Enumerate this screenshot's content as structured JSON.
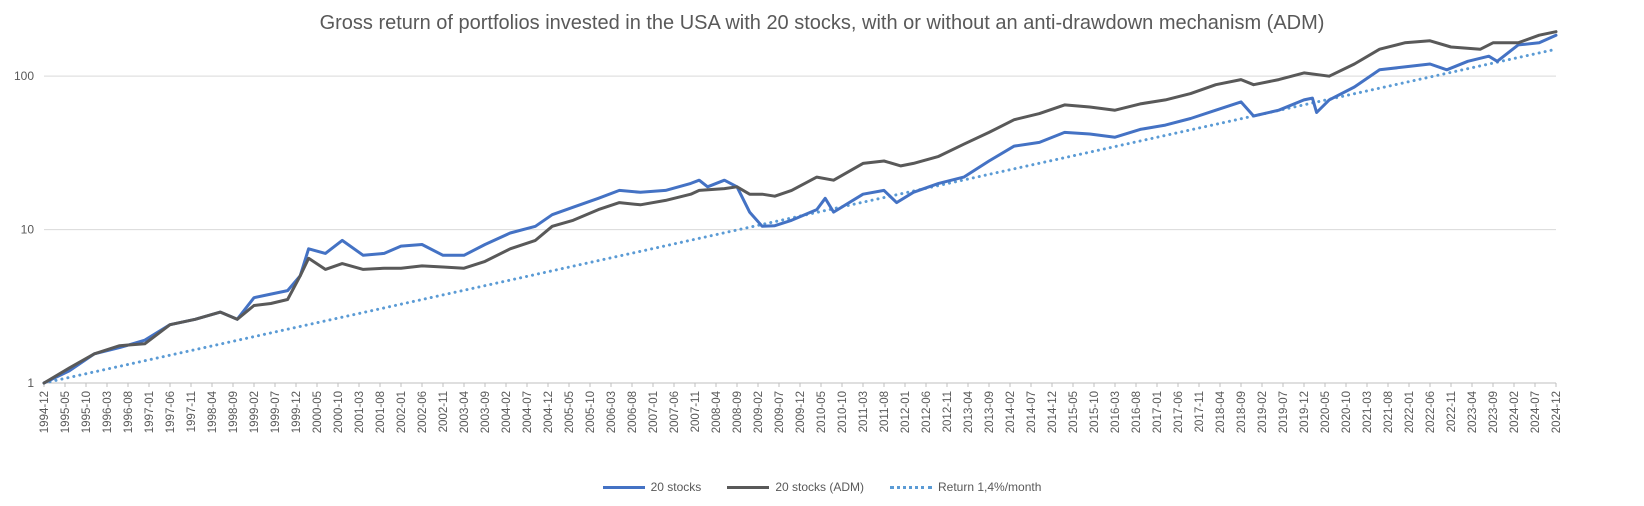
{
  "chart_data": {
    "type": "line",
    "title": "Gross return of portfolios invested in the USA with 20 stocks, with or without an anti-drawdown mechanism (ADM)",
    "y_scale": "log",
    "ylim": [
      1,
      200
    ],
    "y_ticks": [
      {
        "value": 1,
        "label": "1"
      },
      {
        "value": 10,
        "label": "10"
      },
      {
        "value": 100,
        "label": "100"
      }
    ],
    "grid": true,
    "legend_placement": "bottom",
    "x_tick_labels": [
      "1994-12",
      "1995-05",
      "1995-10",
      "1996-03",
      "1996-08",
      "1997-01",
      "1997-06",
      "1997-11",
      "1998-04",
      "1998-09",
      "1999-02",
      "1999-07",
      "1999-12",
      "2000-05",
      "2000-10",
      "2001-03",
      "2001-08",
      "2002-01",
      "2002-06",
      "2002-11",
      "2003-04",
      "2003-09",
      "2004-02",
      "2004-07",
      "2004-12",
      "2005-05",
      "2005-10",
      "2006-03",
      "2006-08",
      "2007-01",
      "2007-06",
      "2007-11",
      "2008-04",
      "2008-09",
      "2009-02",
      "2009-07",
      "2009-12",
      "2010-05",
      "2010-10",
      "2011-03",
      "2011-08",
      "2012-01",
      "2012-06",
      "2012-11",
      "2013-04",
      "2013-09",
      "2014-02",
      "2014-07",
      "2014-12",
      "2015-05",
      "2015-10",
      "2016-03",
      "2016-08",
      "2017-01",
      "2017-06",
      "2017-11",
      "2018-04",
      "2018-09",
      "2019-02",
      "2019-07",
      "2019-12",
      "2020-05",
      "2020-10",
      "2021-03",
      "2021-08",
      "2022-01",
      "2022-06",
      "2022-11",
      "2023-04",
      "2023-09",
      "2024-02",
      "2024-07",
      "2024-12"
    ],
    "series": [
      {
        "name": "20 stocks",
        "color": "#4472C4",
        "style": "solid",
        "points": [
          [
            "1994-12",
            1
          ],
          [
            "1995-06",
            1.2
          ],
          [
            "1995-12",
            1.55
          ],
          [
            "1996-06",
            1.7
          ],
          [
            "1996-12",
            1.9
          ],
          [
            "1997-06",
            2.4
          ],
          [
            "1997-12",
            2.6
          ],
          [
            "1998-06",
            2.9
          ],
          [
            "1998-10",
            2.6
          ],
          [
            "1999-02",
            3.6
          ],
          [
            "1999-06",
            3.8
          ],
          [
            "1999-10",
            4.0
          ],
          [
            "2000-01",
            5.0
          ],
          [
            "2000-03",
            7.5
          ],
          [
            "2000-07",
            7.0
          ],
          [
            "2000-11",
            8.5
          ],
          [
            "2001-04",
            6.8
          ],
          [
            "2001-09",
            7.0
          ],
          [
            "2002-01",
            7.8
          ],
          [
            "2002-06",
            8.0
          ],
          [
            "2002-11",
            6.8
          ],
          [
            "2003-04",
            6.8
          ],
          [
            "2003-09",
            8.0
          ],
          [
            "2004-03",
            9.5
          ],
          [
            "2004-09",
            10.5
          ],
          [
            "2005-01",
            12.5
          ],
          [
            "2005-06",
            14
          ],
          [
            "2005-12",
            16
          ],
          [
            "2006-05",
            18
          ],
          [
            "2006-10",
            17.5
          ],
          [
            "2007-04",
            18
          ],
          [
            "2007-10",
            20
          ],
          [
            "2007-12",
            21
          ],
          [
            "2008-02",
            19
          ],
          [
            "2008-06",
            21
          ],
          [
            "2008-09",
            19
          ],
          [
            "2008-12",
            13
          ],
          [
            "2009-03",
            10.5
          ],
          [
            "2009-06",
            10.6
          ],
          [
            "2009-10",
            11.5
          ],
          [
            "2010-04",
            13.5
          ],
          [
            "2010-06",
            16
          ],
          [
            "2010-08",
            13
          ],
          [
            "2011-03",
            17
          ],
          [
            "2011-08",
            18
          ],
          [
            "2011-11",
            15
          ],
          [
            "2012-03",
            17.5
          ],
          [
            "2012-09",
            20
          ],
          [
            "2013-03",
            22
          ],
          [
            "2013-09",
            28
          ],
          [
            "2014-03",
            35
          ],
          [
            "2014-09",
            37
          ],
          [
            "2015-03",
            43
          ],
          [
            "2015-09",
            42
          ],
          [
            "2016-03",
            40
          ],
          [
            "2016-09",
            45
          ],
          [
            "2017-03",
            48
          ],
          [
            "2017-09",
            53
          ],
          [
            "2018-03",
            60
          ],
          [
            "2018-09",
            68
          ],
          [
            "2018-12",
            55
          ],
          [
            "2019-06",
            60
          ],
          [
            "2019-12",
            70
          ],
          [
            "2020-02",
            72
          ],
          [
            "2020-03",
            58
          ],
          [
            "2020-06",
            70
          ],
          [
            "2020-12",
            85
          ],
          [
            "2021-06",
            110
          ],
          [
            "2021-12",
            115
          ],
          [
            "2022-06",
            120
          ],
          [
            "2022-10",
            110
          ],
          [
            "2023-03",
            125
          ],
          [
            "2023-08",
            135
          ],
          [
            "2023-10",
            125
          ],
          [
            "2024-03",
            160
          ],
          [
            "2024-08",
            165
          ],
          [
            "2024-12",
            185
          ]
        ]
      },
      {
        "name": "20 stocks (ADM)",
        "color": "#595959",
        "style": "solid",
        "points": [
          [
            "1994-12",
            1
          ],
          [
            "1995-06",
            1.25
          ],
          [
            "1995-12",
            1.55
          ],
          [
            "1996-06",
            1.75
          ],
          [
            "1996-12",
            1.8
          ],
          [
            "1997-06",
            2.4
          ],
          [
            "1997-12",
            2.6
          ],
          [
            "1998-06",
            2.9
          ],
          [
            "1998-10",
            2.6
          ],
          [
            "1999-02",
            3.2
          ],
          [
            "1999-06",
            3.3
          ],
          [
            "1999-10",
            3.5
          ],
          [
            "2000-01",
            5.0
          ],
          [
            "2000-03",
            6.5
          ],
          [
            "2000-07",
            5.5
          ],
          [
            "2000-11",
            6.0
          ],
          [
            "2001-04",
            5.5
          ],
          [
            "2001-09",
            5.6
          ],
          [
            "2002-01",
            5.6
          ],
          [
            "2002-06",
            5.8
          ],
          [
            "2002-11",
            5.7
          ],
          [
            "2003-04",
            5.6
          ],
          [
            "2003-09",
            6.2
          ],
          [
            "2004-03",
            7.5
          ],
          [
            "2004-09",
            8.5
          ],
          [
            "2005-01",
            10.5
          ],
          [
            "2005-06",
            11.5
          ],
          [
            "2005-12",
            13.5
          ],
          [
            "2006-05",
            15
          ],
          [
            "2006-10",
            14.5
          ],
          [
            "2007-04",
            15.5
          ],
          [
            "2007-10",
            17
          ],
          [
            "2007-12",
            18
          ],
          [
            "2008-06",
            18.5
          ],
          [
            "2008-09",
            19
          ],
          [
            "2008-12",
            17
          ],
          [
            "2009-03",
            17
          ],
          [
            "2009-06",
            16.5
          ],
          [
            "2009-10",
            18
          ],
          [
            "2010-04",
            22
          ],
          [
            "2010-08",
            21
          ],
          [
            "2011-03",
            27
          ],
          [
            "2011-08",
            28
          ],
          [
            "2011-12",
            26
          ],
          [
            "2012-03",
            27
          ],
          [
            "2012-09",
            30
          ],
          [
            "2013-03",
            36
          ],
          [
            "2013-09",
            43
          ],
          [
            "2014-03",
            52
          ],
          [
            "2014-09",
            57
          ],
          [
            "2015-03",
            65
          ],
          [
            "2015-09",
            63
          ],
          [
            "2016-03",
            60
          ],
          [
            "2016-09",
            66
          ],
          [
            "2017-03",
            70
          ],
          [
            "2017-09",
            77
          ],
          [
            "2018-03",
            88
          ],
          [
            "2018-09",
            95
          ],
          [
            "2018-12",
            88
          ],
          [
            "2019-06",
            95
          ],
          [
            "2019-12",
            105
          ],
          [
            "2020-06",
            100
          ],
          [
            "2020-12",
            120
          ],
          [
            "2021-06",
            150
          ],
          [
            "2021-12",
            165
          ],
          [
            "2022-06",
            170
          ],
          [
            "2022-11",
            155
          ],
          [
            "2023-06",
            150
          ],
          [
            "2023-09",
            165
          ],
          [
            "2024-03",
            165
          ],
          [
            "2024-08",
            185
          ],
          [
            "2024-12",
            195
          ]
        ]
      },
      {
        "name": "Return 1,4%/month",
        "color": "#5B9BD5",
        "style": "dotted",
        "points": [
          [
            "1994-12",
            1
          ],
          [
            "2024-12",
            150
          ]
        ]
      }
    ]
  }
}
